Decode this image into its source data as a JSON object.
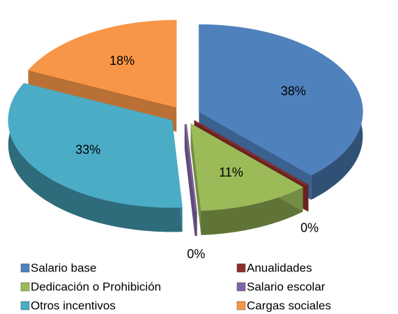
{
  "chart_data": {
    "type": "pie",
    "categories": [
      "Salario base",
      "Anualidades",
      "Dedicación o Prohibición",
      "Salario escolar",
      "Otros incentivos",
      "Cargas sociales"
    ],
    "values": [
      38,
      0,
      11,
      0,
      33,
      18
    ],
    "value_labels": [
      "38%",
      "0%",
      "11%",
      "0%",
      "33%",
      "18%"
    ],
    "colors": [
      "#4f81bd",
      "#8c2e2c",
      "#9bbb59",
      "#8064a2",
      "#4bacc6",
      "#f79646"
    ],
    "legend": "bottom"
  }
}
